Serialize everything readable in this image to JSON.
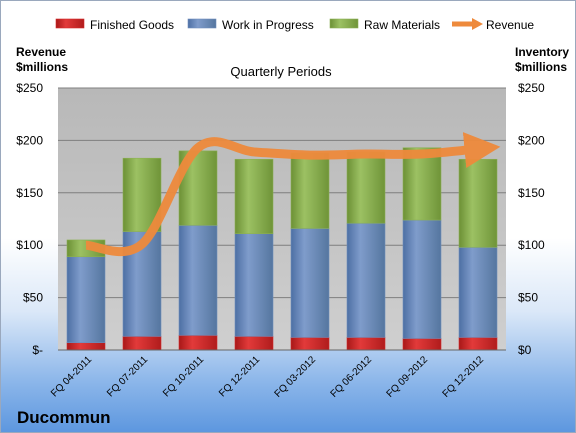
{
  "company": "Ducommun",
  "left_axis_title": [
    "Revenue",
    "$millions"
  ],
  "right_axis_title": [
    "Inventory",
    "$millions"
  ],
  "colors": {
    "finished_goods": "#d42a2a",
    "work_in_progress": "#6f8ebd",
    "raw_materials": "#8db055",
    "revenue": "#ee8a3c",
    "plot_bg": "#c0c0c0"
  },
  "chart_data": {
    "type": "bar",
    "stacked": true,
    "title": "Quarterly Periods",
    "categories": [
      "FQ 04-2011",
      "FQ 07-2011",
      "FQ 10-2011",
      "FQ 12-2011",
      "FQ 03-2012",
      "FQ 06-2012",
      "FQ 09-2012",
      "FQ 12-2012"
    ],
    "series": [
      {
        "name": "Finished Goods",
        "type": "bar",
        "values": [
          7,
          13,
          14,
          13,
          12,
          12,
          11,
          12
        ]
      },
      {
        "name": "Work in Progress",
        "type": "bar",
        "values": [
          82,
          100,
          105,
          98,
          104,
          109,
          113,
          86
        ]
      },
      {
        "name": "Raw Materials",
        "type": "bar",
        "values": [
          16,
          70,
          71,
          71,
          72,
          68,
          69,
          84
        ]
      },
      {
        "name": "Revenue",
        "type": "line",
        "values": [
          100,
          101,
          193,
          189,
          186,
          187,
          187,
          192
        ]
      }
    ],
    "ylim": [
      0,
      250
    ],
    "y_ticks": [
      0,
      50,
      100,
      150,
      200,
      250
    ],
    "left_tick_labels": [
      "$-",
      "$50",
      "$100",
      "$150",
      "$200",
      "$250"
    ],
    "right_tick_labels": [
      "$0",
      "$50",
      "$100",
      "$150",
      "$200",
      "$250"
    ],
    "grid": true,
    "legend": "top"
  }
}
